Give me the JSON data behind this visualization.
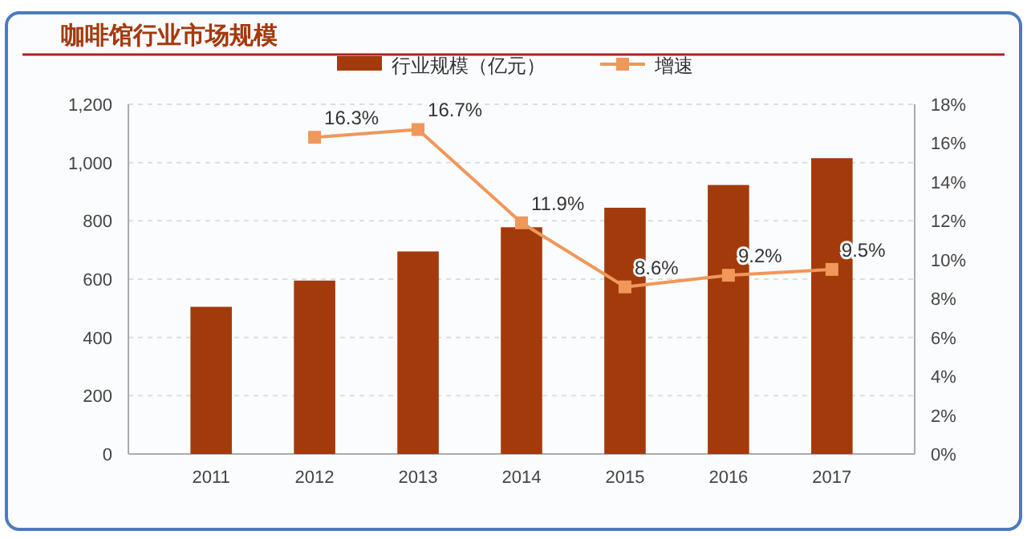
{
  "chart_data": {
    "type": "bar",
    "title": "咖啡馆行业市场规模",
    "categories": [
      "2011",
      "2012",
      "2013",
      "2014",
      "2015",
      "2016",
      "2017"
    ],
    "series": [
      {
        "name": "行业规模（亿元）",
        "color": "#a33a0c",
        "values": [
          505,
          595,
          695,
          778,
          845,
          923,
          1015
        ]
      },
      {
        "name": "增速",
        "type": "line",
        "axis": "y2",
        "color": "#f0975a",
        "marker": "square",
        "values": [
          null,
          16.3,
          16.7,
          11.9,
          8.6,
          9.2,
          9.5
        ],
        "value_labels": [
          null,
          "16.3%",
          "16.7%",
          "11.9%",
          "8.6%",
          "9.2%",
          "9.5%"
        ]
      }
    ],
    "ylim": [
      0,
      1200
    ],
    "yticks": [
      0,
      200,
      400,
      600,
      800,
      {
        "value": 1000,
        "label": "1,000"
      },
      {
        "value": 1200,
        "label": "1,200"
      }
    ],
    "y2lim": [
      0,
      18
    ],
    "y2ticks": [
      {
        "value": 0,
        "label": "0%"
      },
      {
        "value": 2,
        "label": "2%"
      },
      {
        "value": 4,
        "label": "4%"
      },
      {
        "value": 6,
        "label": "6%"
      },
      {
        "value": 8,
        "label": "8%"
      },
      {
        "value": 10,
        "label": "10%"
      },
      {
        "value": 12,
        "label": "12%"
      },
      {
        "value": 14,
        "label": "14%"
      },
      {
        "value": 16,
        "label": "16%"
      },
      {
        "value": 18,
        "label": "18%"
      }
    ],
    "grid": "y",
    "legend": "top"
  }
}
